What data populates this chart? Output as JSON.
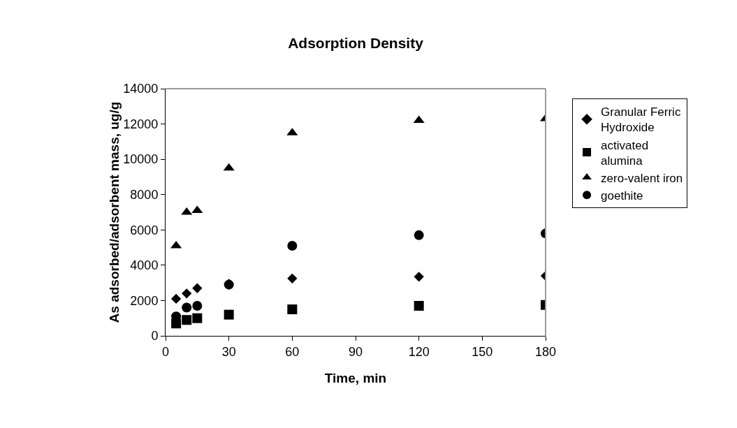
{
  "chart_data": {
    "type": "scatter",
    "title": "Adsorption Density",
    "xlabel": "Time, min",
    "ylabel": "As adsorbed/adsorbent mass, ug/g",
    "x": [
      5,
      10,
      15,
      30,
      60,
      120,
      180
    ],
    "xlim": [
      0,
      180
    ],
    "xticks": [
      0,
      30,
      60,
      90,
      120,
      150,
      180
    ],
    "ylim": [
      0,
      14000
    ],
    "yticks": [
      0,
      2000,
      4000,
      6000,
      8000,
      10000,
      12000,
      14000
    ],
    "grid": false,
    "legend": "right",
    "series": [
      {
        "name": "Granular Ferric Hydroxide",
        "color": "#000000",
        "marker": "diamond",
        "values": [
          2100,
          2400,
          2700,
          2950,
          3250,
          3350,
          3400
        ]
      },
      {
        "name": "activated alumina",
        "color": "#000000",
        "marker": "square",
        "values": [
          700,
          900,
          1000,
          1200,
          1500,
          1700,
          1750
        ]
      },
      {
        "name": "zero-valent iron",
        "color": "#000000",
        "marker": "triangle",
        "values": [
          5100,
          7000,
          7100,
          9500,
          11500,
          12200,
          12300
        ]
      },
      {
        "name": "goethite",
        "color": "#000000",
        "marker": "circle",
        "values": [
          1100,
          1600,
          1700,
          2900,
          5100,
          5700,
          5800
        ]
      }
    ]
  }
}
